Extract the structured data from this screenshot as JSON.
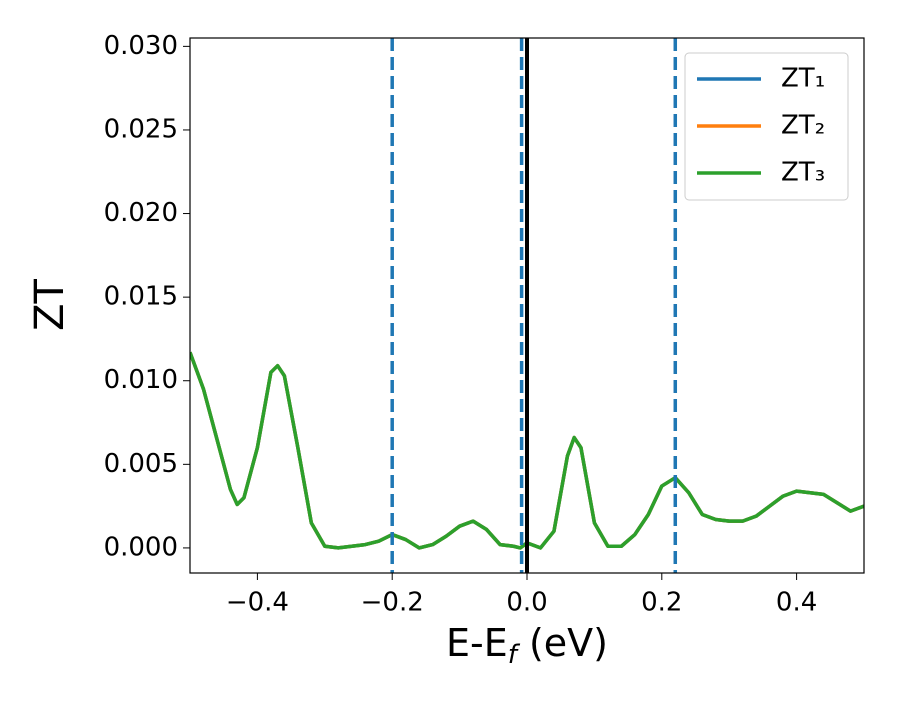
{
  "chart_data": {
    "type": "line",
    "x_label": [
      "E-E",
      "f",
      " (eV)"
    ],
    "y_label": "ZT",
    "xlim": [
      -0.5,
      0.5
    ],
    "ylim": [
      -0.0015,
      0.0305
    ],
    "xticks": [
      {
        "value": -0.4,
        "label": "−0.4"
      },
      {
        "value": -0.2,
        "label": "−0.2"
      },
      {
        "value": 0.0,
        "label": "0.0"
      },
      0.2,
      0.4
    ],
    "yticks": [
      {
        "value": 0.0,
        "label": "0.000"
      },
      {
        "value": 0.005,
        "label": "0.005"
      },
      {
        "value": 0.01,
        "label": "0.010"
      },
      {
        "value": 0.015,
        "label": "0.015"
      },
      {
        "value": 0.02,
        "label": "0.020"
      },
      {
        "value": 0.025,
        "label": "0.025"
      },
      {
        "value": 0.03,
        "label": "0.030"
      }
    ],
    "legend": "upper right",
    "x": [
      -0.5,
      -0.48,
      -0.46,
      -0.44,
      -0.43,
      -0.42,
      -0.4,
      -0.38,
      -0.37,
      -0.36,
      -0.34,
      -0.32,
      -0.3,
      -0.28,
      -0.26,
      -0.24,
      -0.22,
      -0.2,
      -0.18,
      -0.16,
      -0.14,
      -0.12,
      -0.1,
      -0.08,
      -0.06,
      -0.04,
      -0.02,
      -0.01,
      0.0,
      0.02,
      0.04,
      0.06,
      0.07,
      0.08,
      0.1,
      0.12,
      0.14,
      0.16,
      0.18,
      0.2,
      0.22,
      0.24,
      0.26,
      0.28,
      0.3,
      0.32,
      0.34,
      0.36,
      0.38,
      0.4,
      0.42,
      0.44,
      0.46,
      0.48,
      0.5
    ],
    "series": [
      {
        "name": "ZT₁",
        "color": "#1f77b4",
        "values": [
          0.0117,
          0.0095,
          0.0065,
          0.0035,
          0.0026,
          0.003,
          0.006,
          0.0105,
          0.0109,
          0.0103,
          0.006,
          0.0015,
          0.0001,
          0.0,
          0.0001,
          0.0002,
          0.0004,
          0.0008,
          0.0005,
          0.0,
          0.0002,
          0.0007,
          0.0013,
          0.0016,
          0.0011,
          0.0002,
          0.0001,
          0.0,
          0.0003,
          0.0,
          0.001,
          0.0055,
          0.0066,
          0.006,
          0.0015,
          0.0001,
          0.0001,
          0.0008,
          0.002,
          0.0037,
          0.0042,
          0.0033,
          0.002,
          0.0017,
          0.0016,
          0.0016,
          0.0019,
          0.0025,
          0.0031,
          0.0034,
          0.0033,
          0.0032,
          0.0027,
          0.0022,
          0.0025
        ]
      },
      {
        "name": "ZT₂",
        "color": "#ff7f0e",
        "values": [
          0.0117,
          0.0095,
          0.0065,
          0.0035,
          0.0026,
          0.003,
          0.006,
          0.0105,
          0.0109,
          0.0103,
          0.006,
          0.0015,
          0.0001,
          0.0,
          0.0001,
          0.0002,
          0.0004,
          0.0008,
          0.0005,
          0.0,
          0.0002,
          0.0007,
          0.0013,
          0.0016,
          0.0011,
          0.0002,
          0.0001,
          0.0,
          0.0003,
          0.0,
          0.001,
          0.0055,
          0.0066,
          0.006,
          0.0015,
          0.0001,
          0.0001,
          0.0008,
          0.002,
          0.0037,
          0.0042,
          0.0033,
          0.002,
          0.0017,
          0.0016,
          0.0016,
          0.0019,
          0.0025,
          0.0031,
          0.0034,
          0.0033,
          0.0032,
          0.0027,
          0.0022,
          0.0025
        ]
      },
      {
        "name": "ZT₃",
        "color": "#2ca02c",
        "values": [
          0.0117,
          0.0095,
          0.0065,
          0.0035,
          0.0026,
          0.003,
          0.006,
          0.0105,
          0.0109,
          0.0103,
          0.006,
          0.0015,
          0.0001,
          0.0,
          0.0001,
          0.0002,
          0.0004,
          0.0008,
          0.0005,
          0.0,
          0.0002,
          0.0007,
          0.0013,
          0.0016,
          0.0011,
          0.0002,
          0.0001,
          0.0,
          0.0003,
          0.0,
          0.001,
          0.0055,
          0.0066,
          0.006,
          0.0015,
          0.0001,
          0.0001,
          0.0008,
          0.002,
          0.0037,
          0.0042,
          0.0033,
          0.002,
          0.0017,
          0.0016,
          0.0016,
          0.0019,
          0.0025,
          0.0031,
          0.0034,
          0.0033,
          0.0032,
          0.0027,
          0.0022,
          0.0025
        ]
      }
    ],
    "vlines": [
      {
        "x": -0.2,
        "color": "#1f77b4",
        "style": "dashed"
      },
      {
        "x": -0.008,
        "color": "#1f77b4",
        "style": "dashed"
      },
      {
        "x": 0.22,
        "color": "#1f77b4",
        "style": "dashed"
      },
      {
        "x": 0.0,
        "color": "#000000",
        "style": "solid"
      }
    ]
  }
}
